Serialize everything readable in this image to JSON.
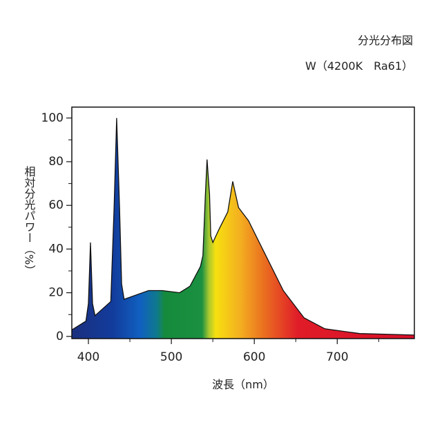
{
  "chart_data": {
    "type": "area",
    "title": "分光分布図",
    "subtitle": "W（4200K　Ra61）",
    "x_label": "波長（nm）",
    "y_label": "相対分光パワー（%）",
    "x": [
      380,
      397,
      400,
      402.5,
      405,
      408,
      427,
      431,
      434,
      437.5,
      440,
      443,
      472.5,
      489,
      510,
      522.5,
      535,
      538,
      541,
      543,
      546,
      547.5,
      550,
      558,
      568,
      574,
      581,
      593,
      610,
      635,
      660,
      685,
      727,
      793
    ],
    "values": [
      3,
      7,
      15,
      43,
      15,
      9.5,
      16,
      59,
      100,
      59,
      24,
      17,
      21,
      21,
      20,
      23,
      32,
      37,
      65,
      81,
      65,
      46,
      43,
      49.5,
      57,
      71,
      59,
      53,
      40,
      21,
      8.5,
      3.5,
      1.3,
      0.6
    ],
    "xlim": [
      380,
      793
    ],
    "ylim": [
      -1,
      105
    ],
    "xticks": [
      400,
      500,
      600,
      700
    ],
    "xticks_minor": [
      450,
      550,
      650,
      750
    ],
    "yticks": [
      0,
      20,
      40,
      60,
      80,
      100
    ],
    "yticks_minor": [
      10,
      30,
      50,
      70,
      90
    ],
    "color": "#111111"
  }
}
